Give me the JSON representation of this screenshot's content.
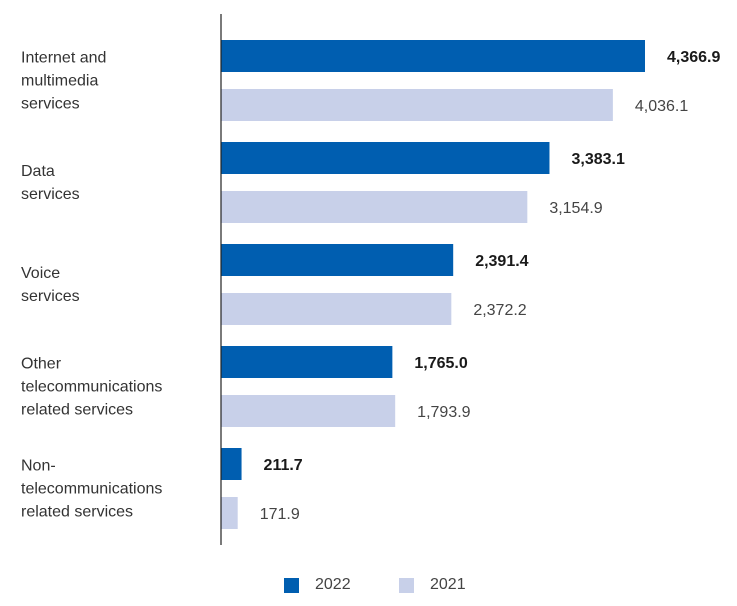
{
  "chart_data": {
    "type": "bar",
    "orientation": "horizontal",
    "categories": [
      [
        "Internet and",
        "multimedia",
        "services"
      ],
      [
        "Data",
        "services"
      ],
      [
        "Voice",
        "services"
      ],
      [
        "Other",
        "telecommunications",
        "related services"
      ],
      [
        "Non-",
        "telecommunications",
        "related services"
      ]
    ],
    "series": [
      {
        "name": "2022",
        "color": "#005eb0",
        "values": [
          4366.9,
          3383.1,
          2391.4,
          1765.0,
          211.7
        ],
        "labels": [
          "4,366.9",
          "3,383.1",
          "2,391.4",
          "1,765.0",
          "211.7"
        ]
      },
      {
        "name": "2021",
        "color": "#c8d0e9",
        "values": [
          4036.1,
          3154.9,
          2372.2,
          1793.9,
          171.9
        ],
        "labels": [
          "4,036.1",
          "3,154.9",
          "2,372.2",
          "1,793.9",
          "171.9"
        ]
      }
    ],
    "xlim": [
      0,
      4366.9
    ],
    "grid": false,
    "legend_position": "bottom"
  }
}
